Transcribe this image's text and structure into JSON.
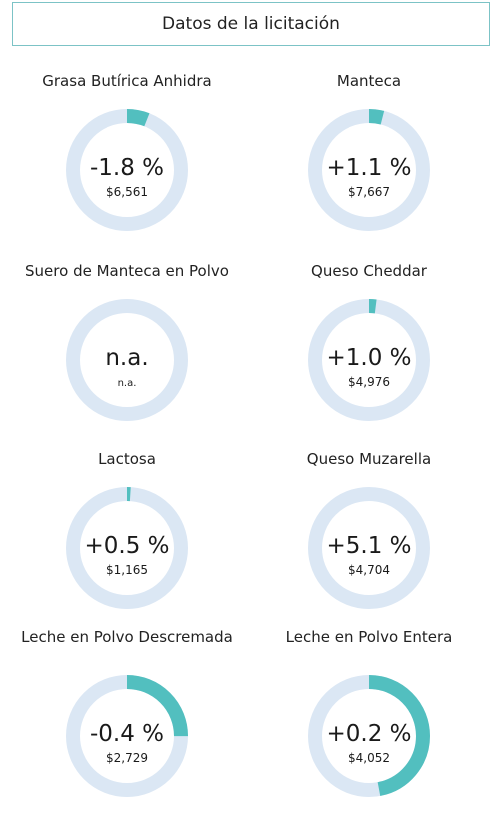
{
  "header": {
    "title": "Datos de la licitación"
  },
  "colors": {
    "track": "#dbe7f4",
    "arc": "#52bfbf",
    "border": "#7cc3c6"
  },
  "chart_data": {
    "type": "pie",
    "title": "Datos de la licitación",
    "items": [
      {
        "label": "Grasa Butírica Anhidra",
        "change": "-1.8 %",
        "price": "$6,561",
        "fill": 0.06
      },
      {
        "label": "Manteca",
        "change": "+1.1 %",
        "price": "$7,667",
        "fill": 0.04
      },
      {
        "label": "Suero de Manteca en Polvo",
        "change": "n.a.",
        "price": "n.a.",
        "fill": 0
      },
      {
        "label": "Queso Cheddar",
        "change": "+1.0 %",
        "price": "$4,976",
        "fill": 0.02
      },
      {
        "label": "Lactosa",
        "change": "+0.5 %",
        "price": "$1,165",
        "fill": 0.01
      },
      {
        "label": "Queso Muzarella",
        "change": "+5.1 %",
        "price": "$4,704",
        "fill": 0
      },
      {
        "label": "Leche en Polvo Descremada",
        "change": "-0.4 %",
        "price": "$2,729",
        "fill": 0.25
      },
      {
        "label": "Leche en Polvo Entera",
        "change": "+0.2 %",
        "price": "$4,052",
        "fill": 0.47
      }
    ]
  }
}
